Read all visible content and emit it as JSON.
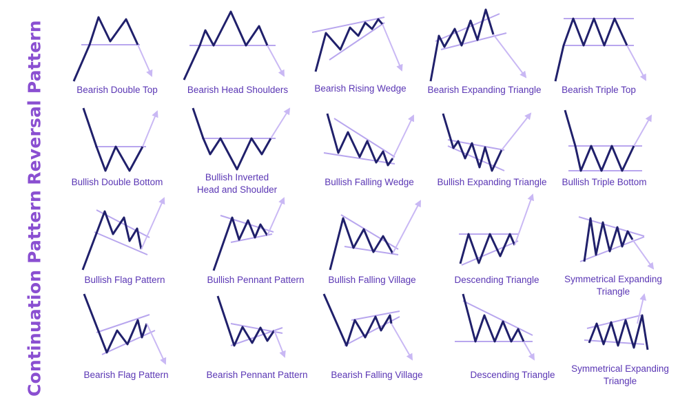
{
  "side_labels": {
    "reversal": "Reversal Pattern",
    "continuation": "Continuation Pattern"
  },
  "colors": {
    "price_line": "#20206b",
    "support_resistance": "#b8a6ee",
    "arrow": "#c9b8f4",
    "label_text": "#5a36b4",
    "side_text": "#8a4fd1"
  },
  "patterns": [
    {
      "id": "bearish-double-top",
      "lines": [
        "Bearish Double Top"
      ],
      "direction": "down"
    },
    {
      "id": "bearish-head-shoulders",
      "lines": [
        "Bearish Head Shoulders"
      ],
      "direction": "down"
    },
    {
      "id": "bearish-rising-wedge",
      "lines": [
        "Bearish Rising Wedge"
      ],
      "direction": "down"
    },
    {
      "id": "bearish-expanding-triangle",
      "lines": [
        "Bearish Expanding Triangle"
      ],
      "direction": "down"
    },
    {
      "id": "bearish-triple-top",
      "lines": [
        "Bearish Triple Top"
      ],
      "direction": "down"
    },
    {
      "id": "bullish-double-bottom",
      "lines": [
        "Bullish Double Bottom"
      ],
      "direction": "up"
    },
    {
      "id": "bullish-inverted-head-and-shoulder",
      "lines": [
        "Bullish Inverted",
        "Head and Shoulder"
      ],
      "direction": "up"
    },
    {
      "id": "bullish-falling-wedge",
      "lines": [
        "Bullish Falling Wedge"
      ],
      "direction": "up"
    },
    {
      "id": "bullish-expanding-triangle",
      "lines": [
        "Bullish Expanding Triangle"
      ],
      "direction": "up"
    },
    {
      "id": "bullish-triple-bottom",
      "lines": [
        "Bullish Triple Bottom"
      ],
      "direction": "up"
    },
    {
      "id": "bullish-flag-pattern",
      "lines": [
        "Bullish Flag Pattern"
      ],
      "direction": "up"
    },
    {
      "id": "bullish-pennant-pattern",
      "lines": [
        "Bullish Pennant Pattern"
      ],
      "direction": "up"
    },
    {
      "id": "bullish-falling-village",
      "lines": [
        "Bullish Falling Village"
      ],
      "direction": "up"
    },
    {
      "id": "descending-triangle-1",
      "lines": [
        "Descending Triangle"
      ],
      "direction": "up"
    },
    {
      "id": "symmetrical-expanding-triangle-1",
      "lines": [
        "Symmetrical Expanding",
        "Triangle"
      ],
      "direction": "down"
    },
    {
      "id": "bearish-flag-pattern",
      "lines": [
        "Bearish Flag Pattern"
      ],
      "direction": "down"
    },
    {
      "id": "bearish-pennant-pattern",
      "lines": [
        "Bearish Pennant Pattern"
      ],
      "direction": "down"
    },
    {
      "id": "bearish-falling-village",
      "lines": [
        "Bearish Falling Village"
      ],
      "direction": "down"
    },
    {
      "id": "descending-triangle-2",
      "lines": [
        "Descending Triangle"
      ],
      "direction": "down"
    },
    {
      "id": "symmetrical-expanding-triangle-2",
      "lines": [
        "Symmetrical Expanding",
        "Triangle"
      ],
      "direction": "up"
    }
  ]
}
